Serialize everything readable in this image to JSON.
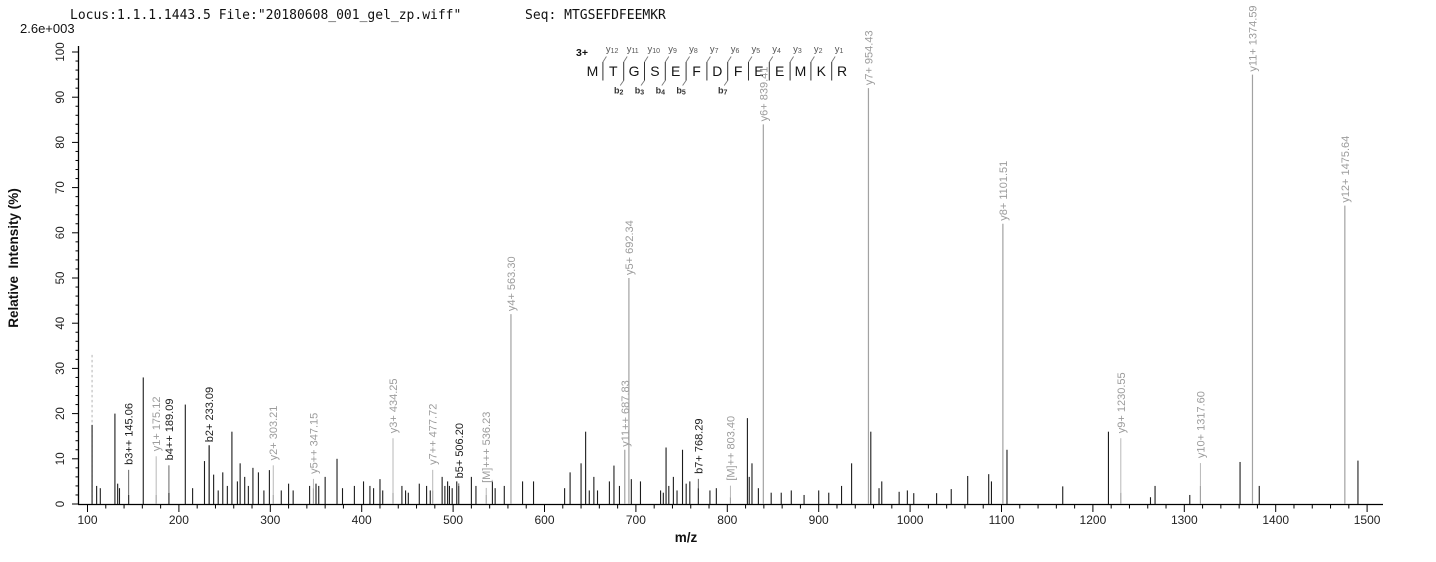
{
  "header": {
    "locus_file": "Locus:1.1.1.1443.5 File:\"20180608_001_gel_zp.wiff\"",
    "seq_label": "Seq: MTGSEFDFEEMKR",
    "max_intensity": "2.6e+003"
  },
  "sequence_annotation": {
    "charge": "3+",
    "residues": [
      "M",
      "T",
      "G",
      "S",
      "E",
      "F",
      "D",
      "F",
      "E",
      "E",
      "M",
      "K",
      "R"
    ],
    "y_ion_labels": [
      {
        "gap": 1,
        "text": "y",
        "num": "12"
      },
      {
        "gap": 2,
        "text": "y",
        "num": "11"
      },
      {
        "gap": 3,
        "text": "y",
        "num": "10"
      },
      {
        "gap": 4,
        "text": "y",
        "num": "9"
      },
      {
        "gap": 5,
        "text": "y",
        "num": "8"
      },
      {
        "gap": 6,
        "text": "y",
        "num": "7"
      },
      {
        "gap": 7,
        "text": "y",
        "num": "6"
      },
      {
        "gap": 8,
        "text": "y",
        "num": "5"
      },
      {
        "gap": 9,
        "text": "y",
        "num": "4"
      },
      {
        "gap": 10,
        "text": "y",
        "num": "3"
      },
      {
        "gap": 11,
        "text": "y",
        "num": "2"
      },
      {
        "gap": 12,
        "text": "y",
        "num": "1"
      }
    ],
    "b_ion_labels": [
      {
        "gap": 2,
        "text": "b",
        "num": "2"
      },
      {
        "gap": 3,
        "text": "b",
        "num": "3"
      },
      {
        "gap": 4,
        "text": "b",
        "num": "4"
      },
      {
        "gap": 5,
        "text": "b",
        "num": "5"
      },
      {
        "gap": 7,
        "text": "b",
        "num": "7"
      }
    ]
  },
  "chart_data": {
    "type": "bar",
    "subtype": "ms2-stick-spectrum",
    "xlabel": "m/z",
    "ylabel": "Relative  Intensity (%)",
    "xlim": [
      90,
      1516
    ],
    "ylim": [
      0,
      100
    ],
    "x_axis": {
      "tick_start": 100,
      "tick_end": 1500,
      "major_step": 100,
      "minor_step": 20
    },
    "y_axis": {
      "tick_start": 0,
      "tick_end": 100,
      "major_step": 10,
      "minor_step": 2
    },
    "grid": false,
    "colors": {
      "peak": "#1c1c1c",
      "y_ion": "#9c9c9c",
      "b_ion": "#1c1c1c",
      "dashed": "#b5b5b5",
      "axis": "#000000"
    },
    "precursor_marker": {
      "mz": 105,
      "intensity": 33,
      "style": "dashed"
    },
    "annotated_peaks": [
      {
        "mz": 145.06,
        "intensity": 2,
        "label": "b3++ 145.06",
        "series": "b",
        "label_base": 8
      },
      {
        "mz": 175.12,
        "intensity": 2,
        "label": "y1+ 175.12",
        "series": "y",
        "label_base": 11
      },
      {
        "mz": 189.09,
        "intensity": 2.5,
        "label": "b4++ 189.09",
        "series": "b",
        "label_base": 9
      },
      {
        "mz": 233.09,
        "intensity": 13,
        "label": "b2+ 233.09",
        "series": "b",
        "label_base": 13
      },
      {
        "mz": 303.21,
        "intensity": 2,
        "label": "y2+ 303.21",
        "series": "y",
        "label_base": 9
      },
      {
        "mz": 347.15,
        "intensity": 3.5,
        "label": "y5++ 347.15",
        "series": "y",
        "label_base": 6
      },
      {
        "mz": 434.25,
        "intensity": 2.5,
        "label": "y3+ 434.25",
        "series": "y",
        "label_base": 15
      },
      {
        "mz": 477.72,
        "intensity": 3,
        "label": "y7++ 477.72",
        "series": "y",
        "label_base": 8
      },
      {
        "mz": 506.2,
        "intensity": 4,
        "label": "b5+ 506.20",
        "series": "b",
        "label_base": 5
      },
      {
        "mz": 536.23,
        "intensity": 2,
        "label": "[M]+++ 536.23",
        "series": "M",
        "label_base": 4
      },
      {
        "mz": 563.3,
        "intensity": 42,
        "label": "y4+ 563.30",
        "series": "y",
        "label_base": 42
      },
      {
        "mz": 687.83,
        "intensity": 12,
        "label": "y11++ 687.83",
        "series": "y",
        "label_base": 12
      },
      {
        "mz": 692.34,
        "intensity": 50,
        "label": "y5+ 692.34",
        "series": "y",
        "label_base": 50
      },
      {
        "mz": 768.29,
        "intensity": 3.5,
        "label": "b7+ 768.29",
        "series": "b",
        "label_base": 6
      },
      {
        "mz": 803.4,
        "intensity": 1.5,
        "label": "[M]++ 803.40",
        "series": "M",
        "label_base": 4.5
      },
      {
        "mz": 839.41,
        "intensity": 84,
        "label": "y6+ 839.41",
        "series": "y",
        "label_base": 84
      },
      {
        "mz": 954.43,
        "intensity": 92,
        "label": "y7+ 954.43",
        "series": "y",
        "label_base": 92
      },
      {
        "mz": 1101.51,
        "intensity": 62,
        "label": "y8+ 1101.51",
        "series": "y",
        "label_base": 62
      },
      {
        "mz": 1230.55,
        "intensity": 2.5,
        "label": "y9+ 1230.55",
        "series": "y",
        "label_base": 15
      },
      {
        "mz": 1317.6,
        "intensity": 4,
        "label": "y10+ 1317.60",
        "series": "y",
        "label_base": 9.5
      },
      {
        "mz": 1374.59,
        "intensity": 95,
        "label": "y11+ 1374.59",
        "series": "y",
        "label_base": 95
      },
      {
        "mz": 1475.64,
        "intensity": 66,
        "label": "y12+ 1475.64",
        "series": "y",
        "label_base": 66
      }
    ],
    "peaks": [
      [
        105,
        17.5
      ],
      [
        110,
        4
      ],
      [
        114,
        3.5
      ],
      [
        130,
        20
      ],
      [
        133,
        4.5
      ],
      [
        135,
        3.5
      ],
      [
        161,
        28
      ],
      [
        207,
        22
      ],
      [
        215,
        3.5
      ],
      [
        228,
        9.5
      ],
      [
        238,
        6.5
      ],
      [
        243,
        3
      ],
      [
        248,
        7
      ],
      [
        253,
        4
      ],
      [
        258,
        16
      ],
      [
        264,
        5
      ],
      [
        267,
        9
      ],
      [
        272,
        6
      ],
      [
        276,
        4
      ],
      [
        281,
        8
      ],
      [
        287,
        7
      ],
      [
        293,
        3
      ],
      [
        299,
        7.5
      ],
      [
        312,
        3
      ],
      [
        320,
        4.5
      ],
      [
        325,
        3
      ],
      [
        343,
        4
      ],
      [
        350,
        4.5
      ],
      [
        353,
        4
      ],
      [
        360,
        6
      ],
      [
        373,
        10
      ],
      [
        379,
        3.5
      ],
      [
        392,
        4
      ],
      [
        402,
        5
      ],
      [
        409,
        4
      ],
      [
        413,
        3.5
      ],
      [
        420,
        5.5
      ],
      [
        423,
        3
      ],
      [
        444,
        4
      ],
      [
        448,
        3
      ],
      [
        451,
        2.5
      ],
      [
        463,
        4.5
      ],
      [
        471,
        4
      ],
      [
        475,
        3
      ],
      [
        488,
        6
      ],
      [
        491,
        4
      ],
      [
        494,
        5
      ],
      [
        496,
        4
      ],
      [
        499,
        3.5
      ],
      [
        504,
        5
      ],
      [
        520,
        6
      ],
      [
        525,
        4
      ],
      [
        543,
        5
      ],
      [
        546,
        3.5
      ],
      [
        556,
        4
      ],
      [
        576,
        5
      ],
      [
        588,
        5
      ],
      [
        622,
        3.5
      ],
      [
        628,
        7
      ],
      [
        640,
        9
      ],
      [
        645,
        16
      ],
      [
        649,
        3
      ],
      [
        654,
        6
      ],
      [
        658,
        3
      ],
      [
        671,
        5
      ],
      [
        676,
        8.5
      ],
      [
        682,
        4
      ],
      [
        695,
        5.5
      ],
      [
        705,
        5
      ],
      [
        727,
        3
      ],
      [
        730,
        2.5
      ],
      [
        733,
        12.5
      ],
      [
        736,
        4
      ],
      [
        741,
        6
      ],
      [
        745,
        3
      ],
      [
        751,
        12
      ],
      [
        755,
        4.5
      ],
      [
        759,
        5
      ],
      [
        781,
        3
      ],
      [
        788,
        3.5
      ],
      [
        822,
        19
      ],
      [
        824,
        6
      ],
      [
        827,
        9
      ],
      [
        834,
        3.5
      ],
      [
        848,
        2.5
      ],
      [
        859,
        2.5
      ],
      [
        870,
        3
      ],
      [
        884,
        2
      ],
      [
        900,
        3
      ],
      [
        911,
        2.5
      ],
      [
        925,
        4
      ],
      [
        936,
        9
      ],
      [
        957,
        16
      ],
      [
        966,
        3.5
      ],
      [
        969,
        5
      ],
      [
        988,
        2.7
      ],
      [
        997,
        3
      ],
      [
        1004,
        2.4
      ],
      [
        1029,
        2.4
      ],
      [
        1045,
        3.3
      ],
      [
        1063,
        6.2
      ],
      [
        1086,
        6.6
      ],
      [
        1089,
        5
      ],
      [
        1106,
        12
      ],
      [
        1167,
        3.9
      ],
      [
        1217,
        16
      ],
      [
        1263,
        1.5
      ],
      [
        1268,
        4
      ],
      [
        1306,
        2
      ],
      [
        1361,
        9.3
      ],
      [
        1382,
        4
      ],
      [
        1490,
        9.6
      ]
    ]
  }
}
